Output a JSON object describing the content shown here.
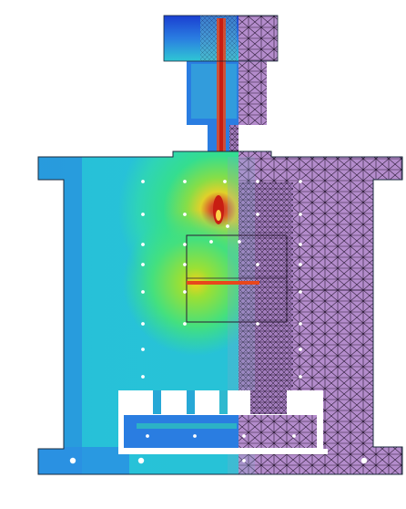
{
  "figure": {
    "description_visible_text": "",
    "left_half": {
      "rendering": "temperature-contour",
      "palette": [
        "#1a3fd1",
        "#2a7de1",
        "#27c2d8",
        "#2fd6b4",
        "#35e08a",
        "#8ee03c",
        "#f0d21c",
        "#e8471c",
        "#c81d12"
      ]
    },
    "right_half": {
      "rendering": "tetrahedral-mesh",
      "fill": "#b48ccc",
      "edge": "#2a1a34"
    },
    "cooling_channels": {
      "count_visible": 38,
      "color": "#ffffff"
    }
  }
}
